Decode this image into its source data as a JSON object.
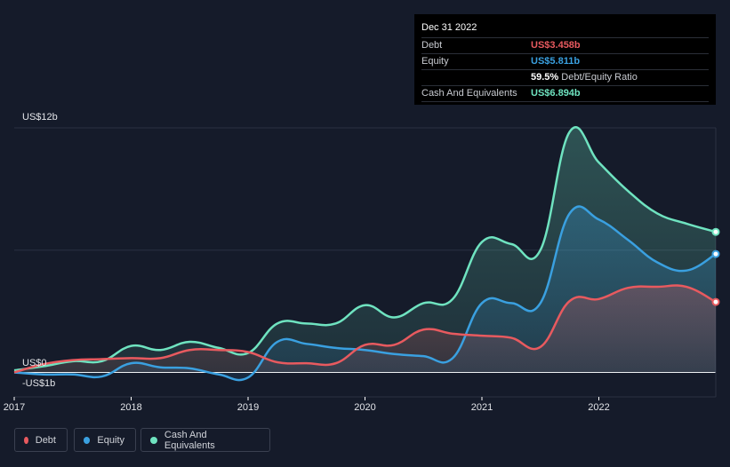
{
  "chart_data": {
    "type": "area",
    "y_label_top": "US$12b",
    "y_label_zero": "US$0",
    "y_label_bottom": "-US$1b",
    "ylim": [
      -1.2,
      12.0
    ],
    "xlim": [
      2017.0,
      2023.0
    ],
    "x_ticks": [
      {
        "value": 2017,
        "label": "2017"
      },
      {
        "value": 2018,
        "label": "2018"
      },
      {
        "value": 2019,
        "label": "2019"
      },
      {
        "value": 2020,
        "label": "2020"
      },
      {
        "value": 2021,
        "label": "2021"
      },
      {
        "value": 2022,
        "label": "2022"
      }
    ],
    "series": [
      {
        "name": "Cash And Equivalents",
        "color": "#6fe3c0",
        "points": [
          [
            2017.0,
            0.1
          ],
          [
            2017.25,
            0.3
          ],
          [
            2017.5,
            0.55
          ],
          [
            2017.75,
            0.55
          ],
          [
            2018.0,
            1.3
          ],
          [
            2018.25,
            1.1
          ],
          [
            2018.5,
            1.5
          ],
          [
            2018.75,
            1.2
          ],
          [
            2019.0,
            0.95
          ],
          [
            2019.25,
            2.4
          ],
          [
            2019.5,
            2.4
          ],
          [
            2019.75,
            2.4
          ],
          [
            2020.0,
            3.3
          ],
          [
            2020.25,
            2.7
          ],
          [
            2020.5,
            3.4
          ],
          [
            2020.75,
            3.6
          ],
          [
            2021.0,
            6.4
          ],
          [
            2021.25,
            6.3
          ],
          [
            2021.5,
            6.0
          ],
          [
            2021.75,
            11.8
          ],
          [
            2022.0,
            10.3
          ],
          [
            2022.25,
            8.9
          ],
          [
            2022.5,
            7.8
          ],
          [
            2022.75,
            7.3
          ],
          [
            2023.0,
            6.894
          ]
        ]
      },
      {
        "name": "Equity",
        "color": "#3aa0e0",
        "points": [
          [
            2017.0,
            0.0
          ],
          [
            2017.25,
            -0.1
          ],
          [
            2017.5,
            -0.1
          ],
          [
            2017.75,
            -0.2
          ],
          [
            2018.0,
            0.45
          ],
          [
            2018.25,
            0.25
          ],
          [
            2018.5,
            0.2
          ],
          [
            2018.75,
            -0.1
          ],
          [
            2019.0,
            -0.25
          ],
          [
            2019.25,
            1.5
          ],
          [
            2019.5,
            1.4
          ],
          [
            2019.75,
            1.2
          ],
          [
            2020.0,
            1.1
          ],
          [
            2020.25,
            0.9
          ],
          [
            2020.5,
            0.8
          ],
          [
            2020.75,
            0.7
          ],
          [
            2021.0,
            3.4
          ],
          [
            2021.25,
            3.4
          ],
          [
            2021.5,
            3.4
          ],
          [
            2021.75,
            7.8
          ],
          [
            2022.0,
            7.5
          ],
          [
            2022.25,
            6.5
          ],
          [
            2022.5,
            5.4
          ],
          [
            2022.75,
            5.0
          ],
          [
            2023.0,
            5.811
          ]
        ]
      },
      {
        "name": "Debt",
        "color": "#e85a5f",
        "points": [
          [
            2017.0,
            0.0
          ],
          [
            2017.25,
            0.4
          ],
          [
            2017.5,
            0.6
          ],
          [
            2017.75,
            0.65
          ],
          [
            2018.0,
            0.7
          ],
          [
            2018.25,
            0.7
          ],
          [
            2018.5,
            1.1
          ],
          [
            2018.75,
            1.1
          ],
          [
            2019.0,
            1.0
          ],
          [
            2019.25,
            0.5
          ],
          [
            2019.5,
            0.45
          ],
          [
            2019.75,
            0.45
          ],
          [
            2020.0,
            1.35
          ],
          [
            2020.25,
            1.35
          ],
          [
            2020.5,
            2.1
          ],
          [
            2020.75,
            1.9
          ],
          [
            2021.0,
            1.8
          ],
          [
            2021.25,
            1.7
          ],
          [
            2021.5,
            1.25
          ],
          [
            2021.75,
            3.5
          ],
          [
            2022.0,
            3.6
          ],
          [
            2022.25,
            4.15
          ],
          [
            2022.5,
            4.2
          ],
          [
            2022.75,
            4.2
          ],
          [
            2023.0,
            3.458
          ]
        ]
      }
    ],
    "grid": true
  },
  "tooltip": {
    "date": "Dec 31 2022",
    "rows": [
      {
        "label": "Debt",
        "value": "US$3.458b",
        "color": "#e85a5f"
      },
      {
        "label": "Equity",
        "value": "US$5.811b",
        "color": "#3aa0e0"
      },
      {
        "label": "",
        "value": "59.5%",
        "suffix": "Debt/Equity Ratio",
        "color": "#ffffff"
      },
      {
        "label": "Cash And Equivalents",
        "value": "US$6.894b",
        "color": "#6fe3c0"
      }
    ]
  },
  "legend": [
    {
      "label": "Debt",
      "color": "#e85a5f"
    },
    {
      "label": "Equity",
      "color": "#3aa0e0"
    },
    {
      "label": "Cash And Equivalents",
      "color": "#6fe3c0"
    }
  ]
}
